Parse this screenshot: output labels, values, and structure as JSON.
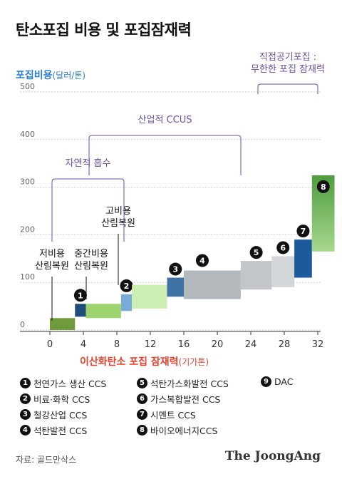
{
  "title": "탄소포집 비용 및 포집잠재력",
  "y_title": {
    "main": "포집비용",
    "unit": "(달러/톤)"
  },
  "x_title": {
    "main": "이산화탄소 포집 잠재력",
    "unit": "(기가톤)"
  },
  "source": "자료: 골드만삭스",
  "brand": "The JoongAng",
  "colors": {
    "accent_blue": "#2a7fd4",
    "accent_red": "#e8412c",
    "bracket": "#6a4fa3"
  },
  "chart_data": {
    "type": "bar",
    "xlim": [
      -2,
      37
    ],
    "ylim": [
      -10,
      500
    ],
    "x_ticks": [
      0,
      4,
      8,
      12,
      16,
      20,
      24,
      28,
      32,
      36
    ],
    "y_ticks": [
      0,
      100,
      200,
      300,
      400,
      500
    ],
    "grid": "horizontal",
    "segments": [
      {
        "id": "",
        "x0": 0,
        "x1": 3,
        "y0": 0,
        "y1": 25,
        "color": "#6f9b3d"
      },
      {
        "id": "1",
        "x0": 3,
        "x1": 4.3,
        "y0": 28,
        "y1": 55,
        "color": "#1f4e79"
      },
      {
        "id": "",
        "x0": 4.3,
        "x1": 8.5,
        "y0": 25,
        "y1": 55,
        "color": "#9ed46f"
      },
      {
        "id": "2",
        "x0": 8.5,
        "x1": 9.8,
        "y0": 40,
        "y1": 75,
        "color": "#7aabd6"
      },
      {
        "id": "",
        "x0": 9.8,
        "x1": 14,
        "y0": 45,
        "y1": 95,
        "color": "#cdeeb2"
      },
      {
        "id": "3",
        "x0": 14,
        "x1": 16,
        "y0": 70,
        "y1": 110,
        "color": "#3f73a6"
      },
      {
        "id": "4",
        "x0": 16,
        "x1": 22.8,
        "y0": 65,
        "y1": 125,
        "color": "#b3b8bd"
      },
      {
        "id": "5",
        "x0": 22.8,
        "x1": 26.5,
        "y0": 85,
        "y1": 145,
        "color": "#c2c6cb"
      },
      {
        "id": "6",
        "x0": 26.5,
        "x1": 29.2,
        "y0": 90,
        "y1": 155,
        "color": "#d3d6d9"
      },
      {
        "id": "7",
        "x0": 29.2,
        "x1": 31.3,
        "y0": 110,
        "y1": 190,
        "color": "#1d5a9c"
      },
      {
        "id": "8",
        "x0": 31.3,
        "x1": 34,
        "y0": 165,
        "y1": 325,
        "color": "#5ba84a"
      },
      {
        "id": "9",
        "x0": 36.6,
        "x1": 48.7,
        "y0": 210,
        "y1": 500,
        "color": "#a8cbe8"
      }
    ],
    "annotations": [
      {
        "lines": [
          "저비용",
          "산림복원"
        ],
        "x": 2,
        "y": 20
      },
      {
        "lines": [
          "중간비용",
          "산림복원"
        ],
        "x": 6.5,
        "y": 50
      },
      {
        "lines": [
          "고비용",
          "산림복원"
        ],
        "x": 12,
        "y": 90
      }
    ],
    "brackets": [
      {
        "label": "자연적 흡수",
        "x0": 0,
        "x1": 11,
        "y": 315
      },
      {
        "label": "산업적 CCUS",
        "x0": 9,
        "x1": 33,
        "y": 400
      },
      {
        "label_lines": [
          "직접공기포집 :",
          "무한한 포집 잠재력"
        ],
        "x0": 36,
        "x1": 48,
        "y": 510
      }
    ]
  },
  "legend": [
    {
      "num": "1",
      "label": "천연가스 생산 CCS"
    },
    {
      "num": "2",
      "label": "비료·화학 CCS"
    },
    {
      "num": "3",
      "label": "철강산업 CCS"
    },
    {
      "num": "4",
      "label": "석탄발전 CCS"
    },
    {
      "num": "5",
      "label": "석탄가스화발전 CCS"
    },
    {
      "num": "6",
      "label": "가스복합발전 CCS"
    },
    {
      "num": "7",
      "label": "시멘트 CCS"
    },
    {
      "num": "8",
      "label": "바이오에너지CCS"
    },
    {
      "num": "9",
      "label": "DAC"
    }
  ]
}
